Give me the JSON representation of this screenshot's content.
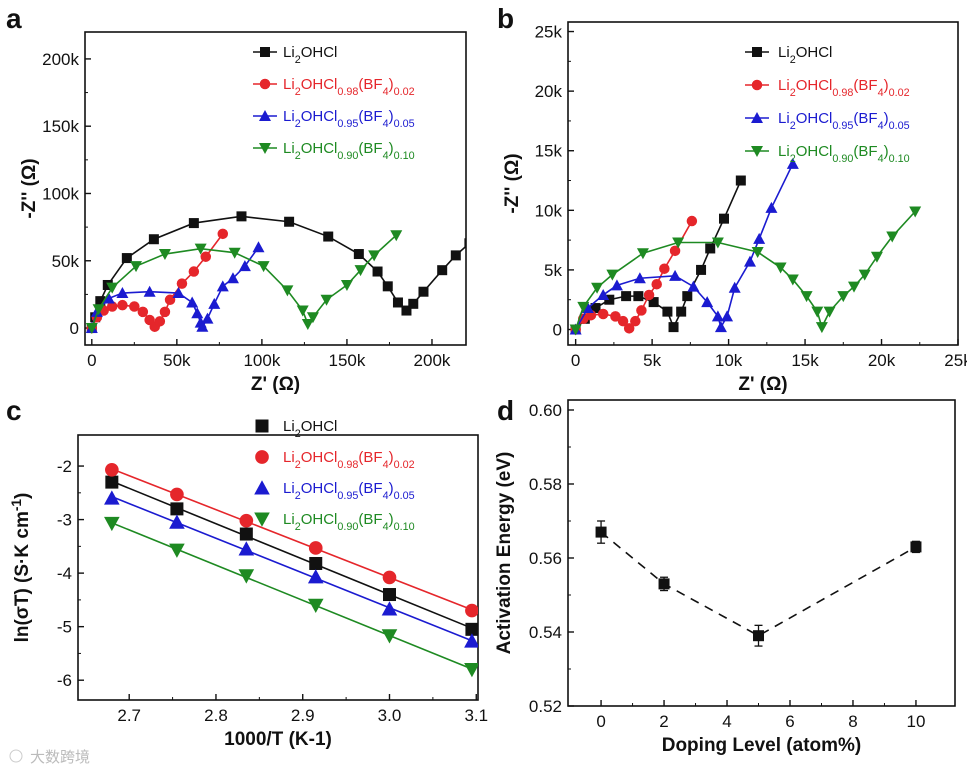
{
  "watermark": "大数跨境",
  "colors": {
    "black": "#111111",
    "red": "#e5262b",
    "blue": "#1b1bd0",
    "green": "#1e8a22"
  },
  "chart_data": [
    {
      "panel": "a",
      "type": "line",
      "xlabel": "Z' (Ω)",
      "ylabel": "-Z'' (Ω)",
      "xlim": [
        -4000,
        220000
      ],
      "ylim": [
        -12600,
        220000
      ],
      "xticks": [
        0,
        50000,
        100000,
        150000,
        200000
      ],
      "xticklabels": [
        "0",
        "50k",
        "100k",
        "150k",
        "200k"
      ],
      "yticks": [
        0,
        50000,
        100000,
        150000,
        200000
      ],
      "yticklabels": [
        "0",
        "50k",
        "100k",
        "150k",
        "200k"
      ],
      "series": [
        {
          "name": "Li2OHCl",
          "label_parts": [
            [
              "Li",
              0
            ],
            [
              "2",
              1
            ],
            [
              "OHCl",
              0
            ]
          ],
          "color": "black",
          "marker": "square",
          "x": [
            0,
            2000,
            5000,
            9400,
            20600,
            36500,
            60000,
            88000,
            116000,
            139000,
            157000,
            168000,
            174000,
            180000,
            185000,
            189000,
            195000,
            206000,
            214000,
            222000
          ],
          "y": [
            0,
            8000,
            20000,
            32000,
            52000,
            66000,
            78000,
            83000,
            79000,
            68000,
            55000,
            42000,
            31000,
            19000,
            13000,
            18000,
            27000,
            43000,
            54000,
            63000
          ]
        },
        {
          "name": "Li2OHCl0.98(BF4)0.02",
          "label_parts": [
            [
              "Li",
              0
            ],
            [
              "2",
              1
            ],
            [
              "OHCl",
              0
            ],
            [
              "0.98",
              1
            ],
            [
              "(BF",
              0
            ],
            [
              "4",
              1
            ],
            [
              ")",
              0
            ],
            [
              "0.02",
              1
            ]
          ],
          "color": "red",
          "marker": "circle",
          "x": [
            0,
            3000,
            7000,
            12000,
            18000,
            25000,
            30000,
            34000,
            37000,
            40000,
            43000,
            46000,
            53000,
            60000,
            67000,
            77000
          ],
          "y": [
            0,
            8000,
            13000,
            16000,
            17000,
            16000,
            12000,
            6000,
            1000,
            5000,
            12000,
            21000,
            33000,
            42000,
            53000,
            70000
          ]
        },
        {
          "name": "Li2OHCl0.95(BF4)0.05",
          "label_parts": [
            [
              "Li",
              0
            ],
            [
              "2",
              1
            ],
            [
              "OHCl",
              0
            ],
            [
              "0.95",
              1
            ],
            [
              "(BF",
              0
            ],
            [
              "4",
              1
            ],
            [
              ")",
              0
            ],
            [
              "0.05",
              1
            ]
          ],
          "color": "blue",
          "marker": "triangle-up",
          "x": [
            0,
            3000,
            10000,
            18000,
            34000,
            51000,
            59000,
            62000,
            64000,
            65000,
            68000,
            72000,
            77000,
            83000,
            90000,
            98000
          ],
          "y": [
            0,
            12000,
            22000,
            26000,
            27000,
            26000,
            19000,
            11000,
            4000,
            1000,
            7000,
            18000,
            31000,
            37000,
            46000,
            60000
          ]
        },
        {
          "name": "Li2OHCl0.90(BF4)0.10",
          "label_parts": [
            [
              "Li",
              0
            ],
            [
              "2",
              1
            ],
            [
              "OHCl",
              0
            ],
            [
              "0.90",
              1
            ],
            [
              "(BF",
              0
            ],
            [
              "4",
              1
            ],
            [
              ")",
              0
            ],
            [
              "0.10",
              1
            ]
          ],
          "color": "green",
          "marker": "triangle-down",
          "x": [
            0,
            4000,
            12000,
            26000,
            43000,
            64000,
            84000,
            101000,
            115000,
            124000,
            127000,
            130000,
            138000,
            150000,
            158000,
            166000,
            179000
          ],
          "y": [
            0,
            14000,
            30000,
            46000,
            55000,
            59000,
            56000,
            46000,
            28000,
            13000,
            3000,
            8000,
            21000,
            32000,
            43000,
            54000,
            69000
          ]
        }
      ]
    },
    {
      "panel": "b",
      "type": "line",
      "xlabel": "Z' (Ω)",
      "ylabel": "-Z'' (Ω)",
      "xlim": [
        -500,
        25000
      ],
      "ylim": [
        -1300,
        25800
      ],
      "xticks": [
        0,
        5000,
        10000,
        15000,
        20000,
        25000
      ],
      "xticklabels": [
        "0",
        "5k",
        "10k",
        "15k",
        "20k",
        "25k"
      ],
      "yticks": [
        0,
        5000,
        10000,
        15000,
        20000,
        25000
      ],
      "yticklabels": [
        "0",
        "5k",
        "10k",
        "15k",
        "20k",
        "25k"
      ],
      "series": [
        {
          "name": "Li2OHCl",
          "color": "black",
          "marker": "square",
          "x": [
            0,
            600,
            1300,
            2200,
            3300,
            4100,
            5100,
            6000,
            6400,
            6900,
            7300,
            8200,
            8800,
            9700,
            10800
          ],
          "y": [
            0,
            900,
            1800,
            2500,
            2800,
            2800,
            2300,
            1500,
            200,
            1500,
            2800,
            5000,
            6800,
            9300,
            12500
          ]
        },
        {
          "name": "Li2OHCl0.98(BF4)0.02",
          "color": "red",
          "marker": "circle",
          "x": [
            0,
            500,
            1000,
            1800,
            2600,
            3100,
            3500,
            3900,
            4300,
            4800,
            5300,
            5800,
            6500,
            7600
          ],
          "y": [
            0,
            900,
            1200,
            1300,
            1100,
            700,
            100,
            700,
            1600,
            2900,
            3800,
            5100,
            6600,
            9100
          ]
        },
        {
          "name": "Li2OHCl0.95(BF4)0.05",
          "color": "blue",
          "marker": "triangle-up",
          "x": [
            0,
            800,
            1800,
            2700,
            4200,
            6500,
            7700,
            8600,
            9300,
            9500,
            9900,
            10400,
            11400,
            12000,
            12800,
            14200
          ],
          "y": [
            0,
            1800,
            2900,
            3700,
            4300,
            4500,
            3600,
            2300,
            1100,
            200,
            1100,
            3500,
            5700,
            7600,
            10200,
            13900
          ]
        },
        {
          "name": "Li2OHCl0.90(BF4)0.10",
          "color": "green",
          "marker": "triangle-down",
          "x": [
            0,
            500,
            1400,
            2400,
            4400,
            6700,
            9300,
            11900,
            13400,
            14200,
            15100,
            15800,
            16100,
            16600,
            17500,
            18200,
            18900,
            19700,
            20700,
            22200
          ],
          "y": [
            0,
            1900,
            3500,
            4600,
            6400,
            7300,
            7300,
            6500,
            5200,
            4200,
            2800,
            1500,
            200,
            1500,
            2800,
            3600,
            4600,
            6100,
            7800,
            9900
          ]
        }
      ]
    },
    {
      "panel": "c",
      "type": "scatter",
      "xlabel": "1000/T (K-1)",
      "xlabel_parts": [
        [
          "1000/T (K",
          0
        ],
        [
          "-1",
          2
        ],
        [
          ")",
          0
        ]
      ],
      "ylabel": "ln(σT) (S·K cm-1)",
      "ylabel_parts": [
        [
          "ln(σT) (S·K cm",
          0
        ],
        [
          "-1",
          2
        ],
        [
          ")",
          0
        ]
      ],
      "xlim": [
        2.641,
        3.102
      ],
      "ylim": [
        -6.37,
        -1.42
      ],
      "xticks": [
        2.7,
        2.8,
        2.9,
        3.0,
        3.1
      ],
      "xticklabels": [
        "2.7",
        "2.8",
        "2.9",
        "3.0",
        "3.1"
      ],
      "yticks": [
        -2,
        -3,
        -4,
        -5,
        -6
      ],
      "yticklabels": [
        "-2",
        "-3",
        "-4",
        "-5",
        "-6"
      ],
      "x": [
        2.68,
        2.755,
        2.835,
        2.915,
        3.0,
        3.095
      ],
      "series": [
        {
          "name": "Li2OHCl",
          "color": "black",
          "marker": "square",
          "y": [
            -2.3,
            -2.8,
            -3.27,
            -3.82,
            -4.4,
            -5.05
          ]
        },
        {
          "name": "Li2OHCl0.98(BF4)0.02",
          "color": "red",
          "marker": "circle",
          "y": [
            -2.07,
            -2.53,
            -3.02,
            -3.53,
            -4.08,
            -4.7
          ]
        },
        {
          "name": "Li2OHCl0.95(BF4)0.05",
          "color": "blue",
          "marker": "triangle-up",
          "y": [
            -2.6,
            -3.05,
            -3.55,
            -4.07,
            -4.67,
            -5.27
          ]
        },
        {
          "name": "Li2OHCl0.90(BF4)0.10",
          "color": "green",
          "marker": "triangle-down",
          "y": [
            -3.07,
            -3.57,
            -4.05,
            -4.6,
            -5.17,
            -5.8
          ]
        }
      ]
    },
    {
      "panel": "d",
      "type": "line",
      "xlabel": "Doping Level (atom%)",
      "ylabel": "Activation Energy (eV)",
      "xlim": [
        -1.05,
        11.24
      ],
      "ylim": [
        0.52,
        0.6027
      ],
      "xticks": [
        0,
        2,
        4,
        6,
        8,
        10
      ],
      "xticklabels": [
        "0",
        "2",
        "4",
        "6",
        "8",
        "10"
      ],
      "yticks": [
        0.52,
        0.54,
        0.56,
        0.58,
        0.6
      ],
      "yticklabels": [
        "0.52",
        "0.54",
        "0.56",
        "0.58",
        "0.60"
      ],
      "series": [
        {
          "name": "Activation Energy",
          "color": "black",
          "marker": "square",
          "dashed": true,
          "x": [
            0,
            2,
            5,
            10
          ],
          "y": [
            0.567,
            0.553,
            0.539,
            0.563
          ],
          "yerr": [
            0.003,
            0.0018,
            0.0028,
            0.0015
          ]
        }
      ]
    }
  ]
}
